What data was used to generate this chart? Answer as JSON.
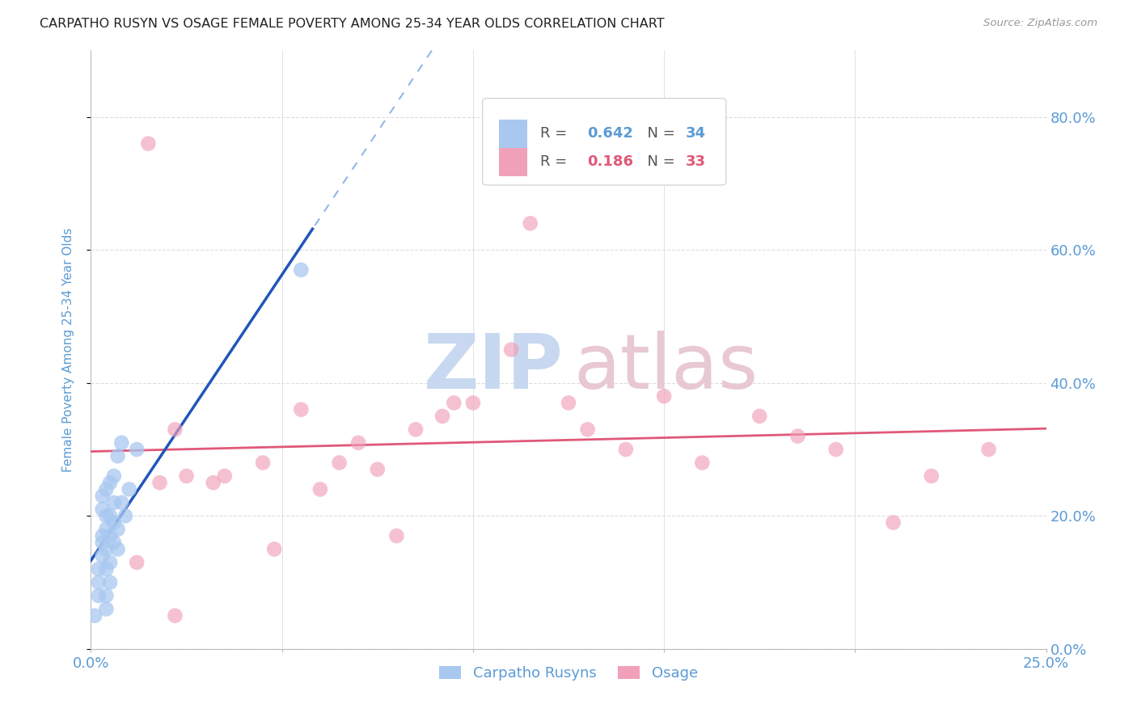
{
  "title": "CARPATHO RUSYN VS OSAGE FEMALE POVERTY AMONG 25-34 YEAR OLDS CORRELATION CHART",
  "source": "Source: ZipAtlas.com",
  "ylabel_label": "Female Poverty Among 25-34 Year Olds",
  "xlim": [
    0.0,
    0.25
  ],
  "ylim": [
    0.0,
    0.9
  ],
  "xtick_vals": [
    0.0,
    0.05,
    0.1,
    0.15,
    0.2,
    0.25
  ],
  "ytick_vals": [
    0.0,
    0.2,
    0.4,
    0.6,
    0.8
  ],
  "blue_color": "#a8c8f0",
  "pink_color": "#f0a0b8",
  "blue_line_color": "#2255bb",
  "pink_line_color": "#e05878",
  "dashed_line_color": "#90b8e8",
  "background_color": "#ffffff",
  "grid_color": "#dddddd",
  "tick_color": "#5b9bd5",
  "watermark_zip_color": "#c8d8f0",
  "watermark_atlas_color": "#e8c8d4",
  "carpatho_x": [
    0.001,
    0.002,
    0.002,
    0.002,
    0.003,
    0.003,
    0.003,
    0.003,
    0.003,
    0.004,
    0.004,
    0.004,
    0.004,
    0.004,
    0.004,
    0.004,
    0.005,
    0.005,
    0.005,
    0.005,
    0.005,
    0.006,
    0.006,
    0.006,
    0.006,
    0.007,
    0.007,
    0.007,
    0.008,
    0.008,
    0.009,
    0.01,
    0.012,
    0.055
  ],
  "carpatho_y": [
    0.05,
    0.08,
    0.1,
    0.12,
    0.14,
    0.16,
    0.17,
    0.21,
    0.23,
    0.06,
    0.08,
    0.12,
    0.15,
    0.18,
    0.2,
    0.24,
    0.1,
    0.13,
    0.17,
    0.2,
    0.25,
    0.16,
    0.19,
    0.22,
    0.26,
    0.15,
    0.18,
    0.29,
    0.22,
    0.31,
    0.2,
    0.24,
    0.3,
    0.57
  ],
  "osage_x": [
    0.015,
    0.012,
    0.018,
    0.025,
    0.022,
    0.035,
    0.032,
    0.045,
    0.055,
    0.06,
    0.065,
    0.07,
    0.075,
    0.08,
    0.085,
    0.095,
    0.1,
    0.11,
    0.115,
    0.125,
    0.13,
    0.14,
    0.15,
    0.16,
    0.175,
    0.185,
    0.195,
    0.21,
    0.22,
    0.235,
    0.022,
    0.048,
    0.092
  ],
  "osage_y": [
    0.76,
    0.13,
    0.25,
    0.26,
    0.33,
    0.26,
    0.25,
    0.28,
    0.36,
    0.24,
    0.28,
    0.31,
    0.27,
    0.17,
    0.33,
    0.37,
    0.37,
    0.45,
    0.64,
    0.37,
    0.33,
    0.3,
    0.38,
    0.28,
    0.35,
    0.32,
    0.3,
    0.19,
    0.26,
    0.3,
    0.05,
    0.15,
    0.35
  ]
}
